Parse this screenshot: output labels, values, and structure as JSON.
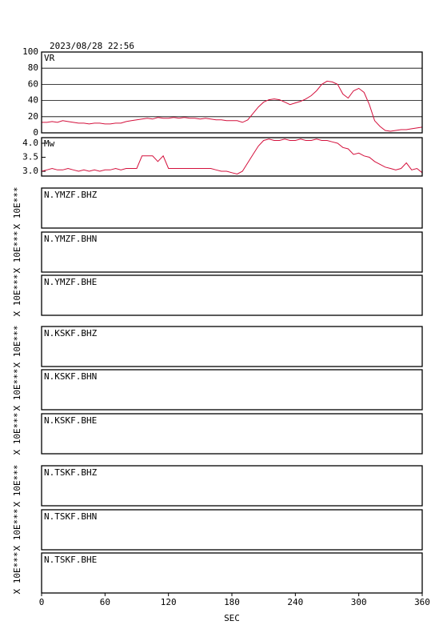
{
  "timestamp": "2023/08/28 22:56",
  "chart_data": [
    {
      "type": "line",
      "title": "VR",
      "color": "#d4103c",
      "grid": true,
      "xlim": [
        0,
        360
      ],
      "ylim": [
        0,
        100
      ],
      "yticks": [
        0,
        20,
        40,
        60,
        80,
        100
      ],
      "x": [
        0,
        5,
        10,
        15,
        20,
        25,
        30,
        35,
        40,
        45,
        50,
        55,
        60,
        65,
        70,
        75,
        80,
        85,
        90,
        95,
        100,
        105,
        110,
        115,
        120,
        125,
        130,
        135,
        140,
        145,
        150,
        155,
        160,
        165,
        170,
        175,
        180,
        185,
        190,
        195,
        200,
        205,
        210,
        215,
        220,
        225,
        230,
        235,
        240,
        245,
        250,
        255,
        260,
        265,
        270,
        275,
        280,
        285,
        290,
        295,
        300,
        305,
        310,
        315,
        320,
        325,
        330,
        335,
        340,
        345,
        350,
        355,
        360
      ],
      "values": [
        13,
        13,
        14,
        13,
        15,
        14,
        13,
        12,
        12,
        11,
        12,
        12,
        11,
        11,
        12,
        12,
        14,
        15,
        16,
        17,
        18,
        17,
        19,
        18,
        18,
        19,
        18,
        19,
        18,
        18,
        17,
        18,
        17,
        16,
        16,
        15,
        15,
        15,
        13,
        16,
        24,
        32,
        38,
        41,
        42,
        41,
        38,
        35,
        37,
        39,
        42,
        46,
        52,
        60,
        64,
        63,
        60,
        48,
        43,
        52,
        55,
        50,
        35,
        15,
        8,
        3,
        2,
        3,
        4,
        4,
        5,
        6,
        7
      ]
    },
    {
      "type": "line",
      "title": "Mw",
      "color": "#d4103c",
      "grid": false,
      "xlim": [
        0,
        360
      ],
      "ylim": [
        2.83,
        4.2
      ],
      "yticks": [
        {
          "value": 3,
          "label": "3.0"
        },
        {
          "value": 3.5,
          "label": "3.5"
        },
        {
          "value": 4,
          "label": "4.0"
        }
      ],
      "x": [
        0,
        5,
        10,
        15,
        20,
        25,
        30,
        35,
        40,
        45,
        50,
        55,
        60,
        65,
        70,
        75,
        80,
        85,
        90,
        95,
        100,
        105,
        110,
        115,
        120,
        125,
        130,
        135,
        140,
        145,
        150,
        155,
        160,
        165,
        170,
        175,
        180,
        185,
        190,
        195,
        200,
        205,
        210,
        215,
        220,
        225,
        230,
        235,
        240,
        245,
        250,
        255,
        260,
        265,
        270,
        275,
        280,
        285,
        290,
        295,
        300,
        305,
        310,
        315,
        320,
        325,
        330,
        335,
        340,
        345,
        350,
        355,
        360
      ],
      "values": [
        3.0,
        3.05,
        3.1,
        3.05,
        3.05,
        3.1,
        3.05,
        3.0,
        3.05,
        3.0,
        3.05,
        3.0,
        3.05,
        3.05,
        3.1,
        3.05,
        3.1,
        3.1,
        3.1,
        3.55,
        3.55,
        3.55,
        3.35,
        3.55,
        3.1,
        3.1,
        3.1,
        3.1,
        3.1,
        3.1,
        3.1,
        3.1,
        3.1,
        3.05,
        3.0,
        3.0,
        2.95,
        2.9,
        3.0,
        3.3,
        3.6,
        3.9,
        4.1,
        4.15,
        4.1,
        4.1,
        4.15,
        4.1,
        4.1,
        4.15,
        4.1,
        4.1,
        4.15,
        4.1,
        4.1,
        4.05,
        4.0,
        3.85,
        3.8,
        3.6,
        3.65,
        3.55,
        3.5,
        3.35,
        3.25,
        3.15,
        3.1,
        3.05,
        3.1,
        3.3,
        3.05,
        3.1,
        2.95
      ]
    }
  ],
  "panels": [
    {
      "label": "N.YMZF.BHZ",
      "ylabel": "X 10E***"
    },
    {
      "label": "N.YMZF.BHN",
      "ylabel": "X 10E***"
    },
    {
      "label": "N.YMZF.BHE",
      "ylabel": "X 10E***"
    },
    {
      "label": "N.KSKF.BHZ",
      "ylabel": "X 10E***"
    },
    {
      "label": "N.KSKF.BHN",
      "ylabel": "X 10E***"
    },
    {
      "label": "N.KSKF.BHE",
      "ylabel": "X 10E***"
    },
    {
      "label": "N.TSKF.BHZ",
      "ylabel": "X 10E***"
    },
    {
      "label": "N.TSKF.BHN",
      "ylabel": "X 10E***"
    },
    {
      "label": "N.TSKF.BHE",
      "ylabel": "X 10E***"
    }
  ],
  "xaxis": {
    "label": "SEC",
    "xlim": [
      0,
      360
    ],
    "xticks": [
      0,
      60,
      120,
      180,
      240,
      300,
      360
    ]
  }
}
